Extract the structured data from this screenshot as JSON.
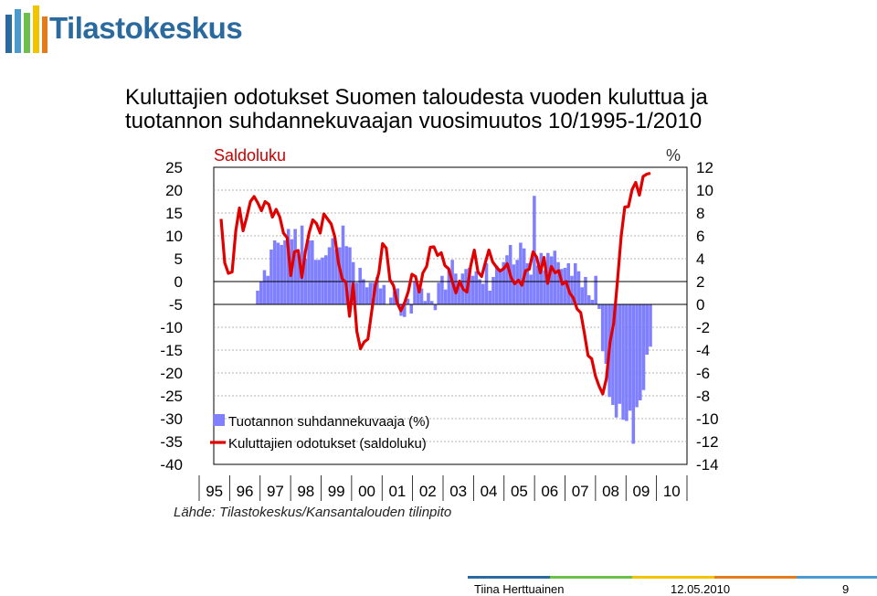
{
  "header": {
    "logo_text": "Tilastokeskus"
  },
  "title_lines": [
    "Kuluttajien odotukset Suomen taloudesta vuoden kuluttua ja",
    "tuotannon suhdannekuvaajan vuosimuutos 10/1995-1/2010"
  ],
  "chart_data": {
    "type": "bar",
    "left_axis_label": "Saldoluku",
    "right_axis_label": "%",
    "left_ylim": [
      -40,
      25
    ],
    "left_ticks": [
      "25",
      "20",
      "15",
      "10",
      "5",
      "0",
      "-5",
      "-10",
      "-15",
      "-20",
      "-25",
      "-30",
      "-35",
      "-40"
    ],
    "right_ylim": [
      -14,
      12
    ],
    "right_ticks": [
      "12",
      "10",
      "8",
      "6",
      "4",
      "2",
      "0",
      "-2",
      "-4",
      "-6",
      "-8",
      "-10",
      "-12",
      "-14"
    ],
    "x_ticks": [
      "95",
      "96",
      "97",
      "98",
      "99",
      "00",
      "01",
      "02",
      "03",
      "04",
      "05",
      "06",
      "07",
      "08",
      "09",
      "10"
    ],
    "legend": [
      {
        "name": "Tuotannon suhdannekuvaaja (%)",
        "kind": "bar",
        "color": "#8080ff"
      },
      {
        "name": "Kuluttajien odotukset (saldoluku)",
        "kind": "line",
        "color": "#e00000"
      }
    ],
    "grid": true,
    "series": [
      {
        "name": "Tuotannon suhdannekuvaaja (%)",
        "kind": "bar",
        "axis": "right",
        "values": [
          1.2,
          2.0,
          3.0,
          2.5,
          4.8,
          5.6,
          5.4,
          5.2,
          5.6,
          6.6,
          5.7,
          6.6,
          4.4,
          6.9,
          4.0,
          5.6,
          5.6,
          3.9,
          3.9,
          4.1,
          4.3,
          5.0,
          5.8,
          4.8,
          5.0,
          6.9,
          5.1,
          5.0,
          3.7,
          1.9,
          3.2,
          2.2,
          1.5,
          1.9,
          1.9,
          2.4,
          1.4,
          1.7,
          0.0,
          0.6,
          1.1,
          1.4,
          -1.0,
          -1.1,
          0.5,
          -0.8,
          2.0,
          1.6,
          1.4,
          0.3,
          1.0,
          0.3,
          -0.5,
          1.9,
          2.5,
          1.3,
          3.1,
          3.9,
          2.7,
          1.8,
          2.7,
          3.1,
          3.2,
          2.5,
          2.9,
          2.2,
          1.8,
          3.6,
          1.2,
          2.4,
          3.4,
          3.1,
          3.7,
          4.3,
          5.2,
          3.5,
          3.9,
          5.4,
          4.9,
          3.6,
          2.6,
          9.5,
          3.4,
          4.5,
          3.0,
          4.5,
          4.2,
          4.7,
          3.7,
          3.1,
          3.2,
          3.6,
          2.5,
          3.6,
          2.9,
          1.5,
          2.4,
          0.8,
          0.4,
          2.5,
          -0.4,
          -4.1,
          -5.2,
          -8.1,
          -8.8,
          -9.9,
          -8.7,
          -10.1,
          -10.2,
          -9.3,
          -12.2,
          -9.0,
          -8.4,
          -7.5,
          -4.4,
          -3.7
        ]
      },
      {
        "name": "Kuluttajien odotukset (saldoluku)",
        "kind": "line",
        "axis": "left",
        "values": [
          13.7,
          4.1,
          1.8,
          2.1,
          11.1,
          16.1,
          11.1,
          14.1,
          17.5,
          18.6,
          17.2,
          15.5,
          17.5,
          16.9,
          14.1,
          15.8,
          14.1,
          10.6,
          9.6,
          1.3,
          6.5,
          6.8,
          0.9,
          6.7,
          10.7,
          13.5,
          12.7,
          10.6,
          14.8,
          13.7,
          12.6,
          9.8,
          4.1,
          0.6,
          -0.2,
          -7.6,
          -0.5,
          -10.9,
          -14.7,
          -13.2,
          -12.6,
          -6.8,
          -1.0,
          1.9,
          8.3,
          7.3,
          0.4,
          -0.9,
          -4.7,
          -6.4,
          -4.6,
          -2.2,
          1.6,
          1.1,
          -2.3,
          1.9,
          3.3,
          7.5,
          7.6,
          5.7,
          6.3,
          3.5,
          2.8,
          0.0,
          -2.5,
          0.1,
          -1.7,
          -2.3,
          3.4,
          6.9,
          2.1,
          1.1,
          4.1,
          6.9,
          4.3,
          3.2,
          2.3,
          2.8,
          3.9,
          0.9,
          -0.5,
          0.3,
          -0.8,
          2.4,
          2.7,
          6.5,
          5.3,
          1.9,
          5.3,
          -0.4,
          3.3,
          1.9,
          2.4,
          -0.6,
          0.0,
          -2.5,
          -3.6,
          -6.0,
          -6.8,
          -11.3,
          -16.2,
          -16.9,
          -20.6,
          -22.9,
          -24.6,
          -21.2,
          -13.2,
          -9.1,
          -0.1,
          9.8,
          16.3,
          16.4,
          20.1,
          21.7,
          18.9,
          23.0,
          23.5,
          23.7
        ]
      }
    ]
  },
  "source_note": "Lähde: Tilastokeskus/Kansantalouden tilinpito",
  "footer": {
    "author": "Tiina Herttuainen",
    "date": "12.05.2010",
    "page": "9"
  }
}
